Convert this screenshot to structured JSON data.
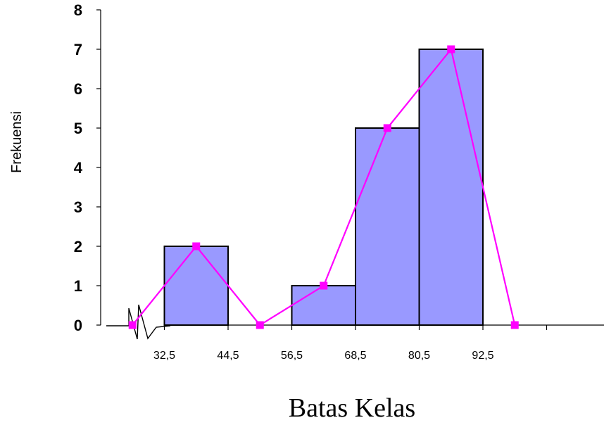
{
  "chart_data": {
    "type": "bar",
    "subtype": "histogram-with-frequency-polygon",
    "title": "",
    "xlabel": "Batas Kelas",
    "ylabel": "Frekuensi",
    "ylim": [
      0,
      8
    ],
    "yticks": [
      0,
      1,
      2,
      3,
      4,
      5,
      6,
      7,
      8
    ],
    "class_boundaries": [
      20.5,
      32.5,
      44.5,
      56.5,
      68.5,
      80.5,
      92.5,
      104.5
    ],
    "xtick_labels": [
      "32,5",
      "44,5",
      "56,5",
      "68,5",
      "80,5",
      "92,5"
    ],
    "xtick_values": [
      32.5,
      44.5,
      56.5,
      68.5,
      80.5,
      92.5
    ],
    "bars": [
      {
        "from": 32.5,
        "to": 44.5,
        "value": 2
      },
      {
        "from": 44.5,
        "to": 56.5,
        "value": 0
      },
      {
        "from": 56.5,
        "to": 68.5,
        "value": 1
      },
      {
        "from": 68.5,
        "to": 80.5,
        "value": 5
      },
      {
        "from": 80.5,
        "to": 92.5,
        "value": 7
      }
    ],
    "polygon": {
      "x": [
        26.5,
        38.5,
        50.5,
        62.5,
        74.5,
        86.5,
        98.5
      ],
      "y": [
        0,
        2,
        0,
        1,
        5,
        7,
        0
      ]
    },
    "axis_break": true,
    "grid": false,
    "legend": "none",
    "colors": {
      "bar_fill": "#9999ff",
      "bar_stroke": "#000000",
      "polygon": "#ff00ff"
    }
  }
}
